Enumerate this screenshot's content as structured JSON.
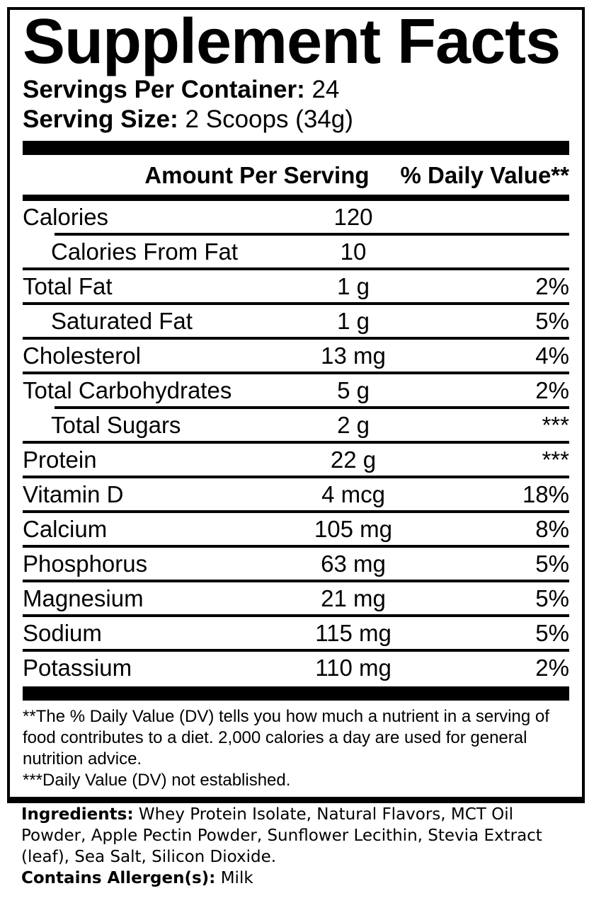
{
  "panel": {
    "title": "Supplement Facts",
    "servings_per_container": {
      "label": "Servings Per Container:",
      "value": "24"
    },
    "serving_size": {
      "label": "Serving Size:",
      "value": "2 Scoops (34g)"
    },
    "columns": {
      "amount": "Amount Per Serving",
      "daily_value": "% Daily Value**"
    },
    "rows": [
      {
        "name": "Calories",
        "amount": "120",
        "daily_value": "",
        "indent": false,
        "separator": "none"
      },
      {
        "name": "Calories From Fat",
        "amount": "10",
        "daily_value": "",
        "indent": true,
        "separator": "indent"
      },
      {
        "name": "Total Fat",
        "amount": "1 g",
        "daily_value": "2%",
        "indent": false,
        "separator": "full"
      },
      {
        "name": "Saturated Fat",
        "amount": "1 g",
        "daily_value": "5%",
        "indent": true,
        "separator": "full"
      },
      {
        "name": "Cholesterol",
        "amount": "13 mg",
        "daily_value": "4%",
        "indent": false,
        "separator": "full"
      },
      {
        "name": "Total Carbohydrates",
        "amount": "5 g",
        "daily_value": "2%",
        "indent": false,
        "separator": "full"
      },
      {
        "name": "Total Sugars",
        "amount": "2 g",
        "daily_value": "***",
        "indent": true,
        "separator": "indent"
      },
      {
        "name": "Protein",
        "amount": "22 g",
        "daily_value": "***",
        "indent": false,
        "separator": "full"
      },
      {
        "name": "Vitamin D",
        "amount": "4 mcg",
        "daily_value": "18%",
        "indent": false,
        "separator": "full"
      },
      {
        "name": "Calcium",
        "amount": "105 mg",
        "daily_value": "8%",
        "indent": false,
        "separator": "full"
      },
      {
        "name": "Phosphorus",
        "amount": "63 mg",
        "daily_value": "5%",
        "indent": false,
        "separator": "full"
      },
      {
        "name": "Magnesium",
        "amount": "21 mg",
        "daily_value": "5%",
        "indent": false,
        "separator": "full"
      },
      {
        "name": "Sodium",
        "amount": "115 mg",
        "daily_value": "5%",
        "indent": false,
        "separator": "full"
      },
      {
        "name": "Potassium",
        "amount": "110 mg",
        "daily_value": "2%",
        "indent": false,
        "separator": "full"
      }
    ],
    "footnotes": [
      "**The % Daily Value (DV) tells you how much a nutrient in a serving of food contributes to a diet. 2,000 calories a day are used for general nutrition advice.",
      "***Daily Value (DV) not established."
    ]
  },
  "ingredients": {
    "label": "Ingredients:",
    "text": "Whey Protein Isolate, Natural Flavors, MCT Oil Powder, Apple Pectin Powder, Sunflower Lecithin, Stevia Extract (leaf), Sea Salt, Silicon Dioxide."
  },
  "allergens": {
    "label": "Contains Allergen(s):",
    "text": "Milk"
  },
  "colors": {
    "text": "#000000",
    "background": "#ffffff"
  }
}
